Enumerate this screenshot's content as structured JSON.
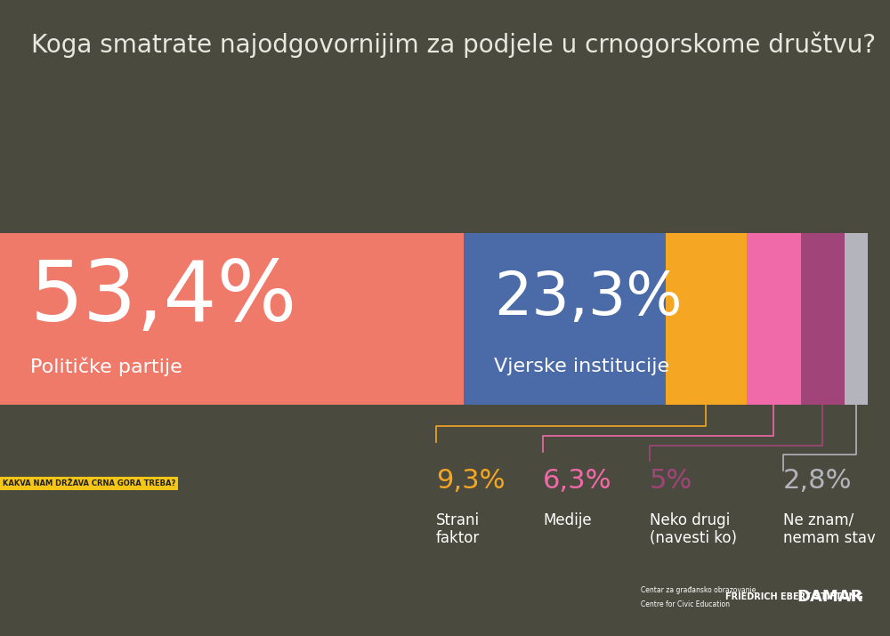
{
  "chart_data": {
    "type": "bar",
    "orientation": "horizontal",
    "stacked": true,
    "title": "Koga smatrate najodgovornijim za podjele u crnogorskome društvu?",
    "categories": [
      "Političke partije",
      "Vjerske institucije",
      "Strani\nfaktor",
      "Medije",
      "Neko drugi\n(navesti ko)",
      "Ne znam/\nnemam stav"
    ],
    "values": [
      53.4,
      23.3,
      9.3,
      6.3,
      5,
      2.8
    ],
    "value_labels": [
      "53,4%",
      "23,3%",
      "9,3%",
      "6,3%",
      "5%",
      "2,8%"
    ],
    "colors": [
      "#f07a6a",
      "#4a6aa8",
      "#f5a623",
      "#f06aaa",
      "#a0447a",
      "#b4b4bc"
    ],
    "data_labels": true,
    "xlim": [
      0,
      100
    ],
    "tick_labels": false,
    "grid": false,
    "annotations": [
      "KAKVA NAM DRŽAVA CRNA GORA TREBA?",
      "Centar za građansko obrazovanje",
      "Centre for Civic Education",
      "FRIEDRICH EBERT STIFTUNG",
      "DAMAR"
    ]
  }
}
